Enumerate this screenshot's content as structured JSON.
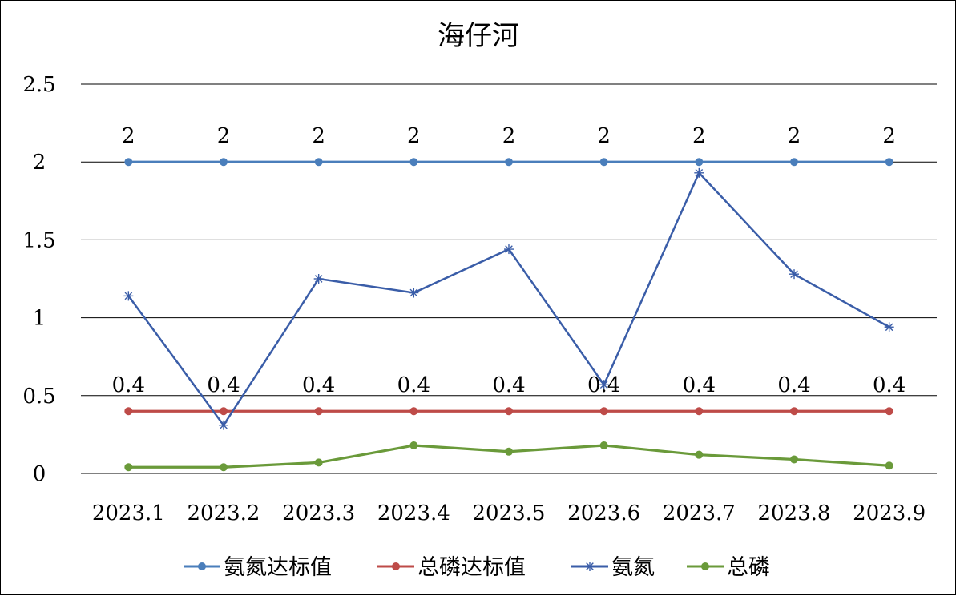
{
  "chart_data": {
    "type": "line",
    "title": "海仔河",
    "categories": [
      "2023.1",
      "2023.2",
      "2023.3",
      "2023.4",
      "2023.5",
      "2023.6",
      "2023.7",
      "2023.8",
      "2023.9"
    ],
    "y_ticks": [
      "0",
      "0.5",
      "1",
      "1.5",
      "2",
      "2.5"
    ],
    "ylim": [
      0,
      2.5
    ],
    "grid": "horizontal",
    "legend_position": "bottom",
    "series": [
      {
        "name": "氨氮达标值",
        "values": [
          2,
          2,
          2,
          2,
          2,
          2,
          2,
          2,
          2
        ],
        "color": "#4a7ebb",
        "marker": "circle",
        "data_labels": [
          "2",
          "2",
          "2",
          "2",
          "2",
          "2",
          "2",
          "2",
          "2"
        ]
      },
      {
        "name": "总磷达标值",
        "values": [
          0.4,
          0.4,
          0.4,
          0.4,
          0.4,
          0.4,
          0.4,
          0.4,
          0.4
        ],
        "color": "#be4b48",
        "marker": "circle",
        "data_labels": [
          "0.4",
          "0.4",
          "0.4",
          "0.4",
          "0.4",
          "0.4",
          "0.4",
          "0.4",
          "0.4"
        ]
      },
      {
        "name": "氨氮",
        "values": [
          1.14,
          0.31,
          1.25,
          1.16,
          1.44,
          0.57,
          1.93,
          1.28,
          0.94
        ],
        "color": "#3a5da8",
        "marker": "star"
      },
      {
        "name": "总磷",
        "values": [
          0.04,
          0.04,
          0.07,
          0.18,
          0.14,
          0.18,
          0.12,
          0.09,
          0.05
        ],
        "color": "#6a9a3a",
        "marker": "circle"
      }
    ]
  }
}
